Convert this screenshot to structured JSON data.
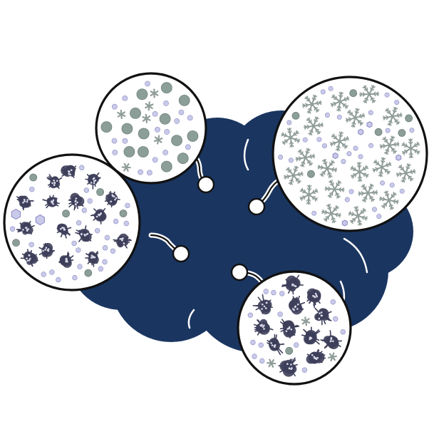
{
  "colors": {
    "background": "#ffffff",
    "cloud": "#1a3560",
    "outline": "#111111",
    "droplet": "#c9c9ea",
    "droplet_edge": "#8e8ec4",
    "graupel": "#8c9e98",
    "graupel_edge": "#6f807a",
    "dendrite": "#8f9c98",
    "plate": "#8a86c4",
    "dark_aggregate": "#3e3f5a"
  },
  "panels": [
    {
      "key": "graupel",
      "contents": [
        "droplet",
        "graupel",
        "small-crystal"
      ]
    },
    {
      "key": "dendrites",
      "contents": [
        "droplet",
        "dendrite",
        "plate-crystal",
        "graupel"
      ]
    },
    {
      "key": "aggregates",
      "contents": [
        "droplet",
        "dark-aggregate",
        "plate-crystal",
        "graupel"
      ]
    },
    {
      "key": "large-aggregates",
      "contents": [
        "droplet",
        "dark-aggregate",
        "small-crystal",
        "graupel"
      ]
    }
  ]
}
